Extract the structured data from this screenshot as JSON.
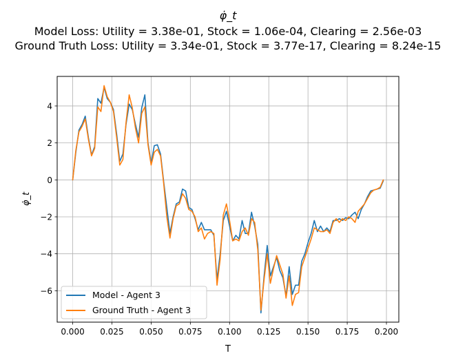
{
  "chart_data": {
    "type": "line",
    "title": "φ̇_t",
    "subtitle_lines": [
      "Model Loss: Utility = 3.38e-01, Stock = 1.06e-04, Clearing = 2.56e-03",
      "Ground Truth Loss: Utility = 3.34e-01, Stock = 3.77e-17, Clearing = 8.24e-15"
    ],
    "xlabel": "T",
    "ylabel": "φ̇_t",
    "xlim": [
      -0.0099,
      0.2079
    ],
    "ylim": [
      -7.7,
      5.6
    ],
    "xticks": [
      0.0,
      0.025,
      0.05,
      0.075,
      0.1,
      0.125,
      0.15,
      0.175,
      0.2
    ],
    "xtick_labels": [
      "0.000",
      "0.025",
      "0.050",
      "0.075",
      "0.100",
      "0.125",
      "0.150",
      "0.175",
      "0.200"
    ],
    "yticks": [
      -6,
      -4,
      -2,
      0,
      2,
      4
    ],
    "ytick_labels": [
      "−6",
      "−4",
      "−2",
      "0",
      "2",
      "4"
    ],
    "grid": true,
    "legend_position": "lower-left",
    "x": [
      0.0,
      0.002,
      0.004,
      0.006,
      0.008,
      0.01,
      0.012,
      0.014,
      0.016,
      0.018,
      0.02,
      0.022,
      0.024,
      0.026,
      0.028,
      0.03,
      0.032,
      0.034,
      0.036,
      0.038,
      0.04,
      0.042,
      0.044,
      0.046,
      0.048,
      0.05,
      0.052,
      0.054,
      0.056,
      0.058,
      0.06,
      0.062,
      0.064,
      0.066,
      0.068,
      0.07,
      0.072,
      0.074,
      0.076,
      0.078,
      0.08,
      0.082,
      0.084,
      0.086,
      0.088,
      0.09,
      0.092,
      0.094,
      0.096,
      0.098,
      0.1,
      0.102,
      0.104,
      0.106,
      0.108,
      0.11,
      0.112,
      0.114,
      0.116,
      0.118,
      0.12,
      0.122,
      0.124,
      0.126,
      0.128,
      0.13,
      0.132,
      0.134,
      0.136,
      0.138,
      0.14,
      0.142,
      0.144,
      0.146,
      0.148,
      0.15,
      0.152,
      0.154,
      0.156,
      0.158,
      0.16,
      0.162,
      0.164,
      0.166,
      0.168,
      0.17,
      0.172,
      0.174,
      0.176,
      0.178,
      0.18,
      0.182,
      0.184,
      0.186,
      0.188,
      0.19,
      0.192,
      0.194,
      0.196,
      0.198
    ],
    "series": [
      {
        "name": "Model - Agent 3",
        "color": "#1f77b4",
        "values": [
          0.0,
          1.5,
          2.7,
          3.0,
          3.45,
          2.3,
          1.35,
          1.8,
          4.4,
          4.15,
          5.0,
          4.4,
          4.2,
          3.8,
          2.5,
          1.0,
          1.4,
          3.0,
          4.1,
          3.8,
          3.0,
          2.3,
          3.9,
          4.6,
          2.0,
          0.9,
          1.85,
          1.9,
          1.4,
          -0.1,
          -1.5,
          -2.9,
          -2.0,
          -1.3,
          -1.2,
          -0.5,
          -0.6,
          -1.5,
          -1.6,
          -2.1,
          -2.7,
          -2.3,
          -2.7,
          -2.7,
          -2.7,
          -3.0,
          -5.4,
          -4.0,
          -2.2,
          -1.7,
          -2.5,
          -3.3,
          -3.0,
          -3.2,
          -2.2,
          -2.9,
          -2.9,
          -1.75,
          -2.5,
          -3.5,
          -7.2,
          -5.2,
          -3.55,
          -5.2,
          -4.7,
          -4.2,
          -4.9,
          -5.3,
          -6.3,
          -4.7,
          -6.2,
          -5.7,
          -5.7,
          -4.4,
          -4.0,
          -3.4,
          -2.9,
          -2.2,
          -2.8,
          -2.5,
          -2.8,
          -2.6,
          -2.8,
          -2.2,
          -2.2,
          -2.1,
          -2.2,
          -2.05,
          -2.1,
          -1.9,
          -1.75,
          -2.1,
          -1.6,
          -1.3,
          -0.9,
          -0.6,
          -0.55,
          -0.5,
          -0.45,
          -0.05
        ]
      },
      {
        "name": "Ground Truth - Agent 3",
        "color": "#ff7f0e",
        "values": [
          0.0,
          1.6,
          2.6,
          2.9,
          3.3,
          2.2,
          1.3,
          1.7,
          3.95,
          3.7,
          5.1,
          4.5,
          4.2,
          3.7,
          2.3,
          0.8,
          1.1,
          3.1,
          4.6,
          3.9,
          2.8,
          2.0,
          3.6,
          3.95,
          1.9,
          0.8,
          1.5,
          1.65,
          1.3,
          -0.2,
          -2.0,
          -3.15,
          -2.1,
          -1.4,
          -1.3,
          -0.75,
          -1.0,
          -1.6,
          -1.7,
          -2.0,
          -2.8,
          -2.6,
          -3.2,
          -2.9,
          -2.8,
          -2.9,
          -5.7,
          -4.3,
          -1.9,
          -1.3,
          -2.2,
          -3.3,
          -3.2,
          -3.3,
          -2.8,
          -2.6,
          -3.0,
          -2.1,
          -2.3,
          -3.8,
          -7.05,
          -5.4,
          -4.0,
          -5.6,
          -4.8,
          -4.1,
          -4.6,
          -5.1,
          -6.4,
          -5.2,
          -6.8,
          -6.2,
          -6.1,
          -4.7,
          -4.2,
          -3.7,
          -3.2,
          -2.6,
          -2.7,
          -2.8,
          -2.8,
          -2.7,
          -2.9,
          -2.3,
          -2.1,
          -2.3,
          -2.1,
          -2.2,
          -2.0,
          -2.1,
          -2.3,
          -1.7,
          -1.5,
          -1.3,
          -1.0,
          -0.7,
          -0.55,
          -0.5,
          -0.4,
          0.0
        ]
      }
    ]
  }
}
